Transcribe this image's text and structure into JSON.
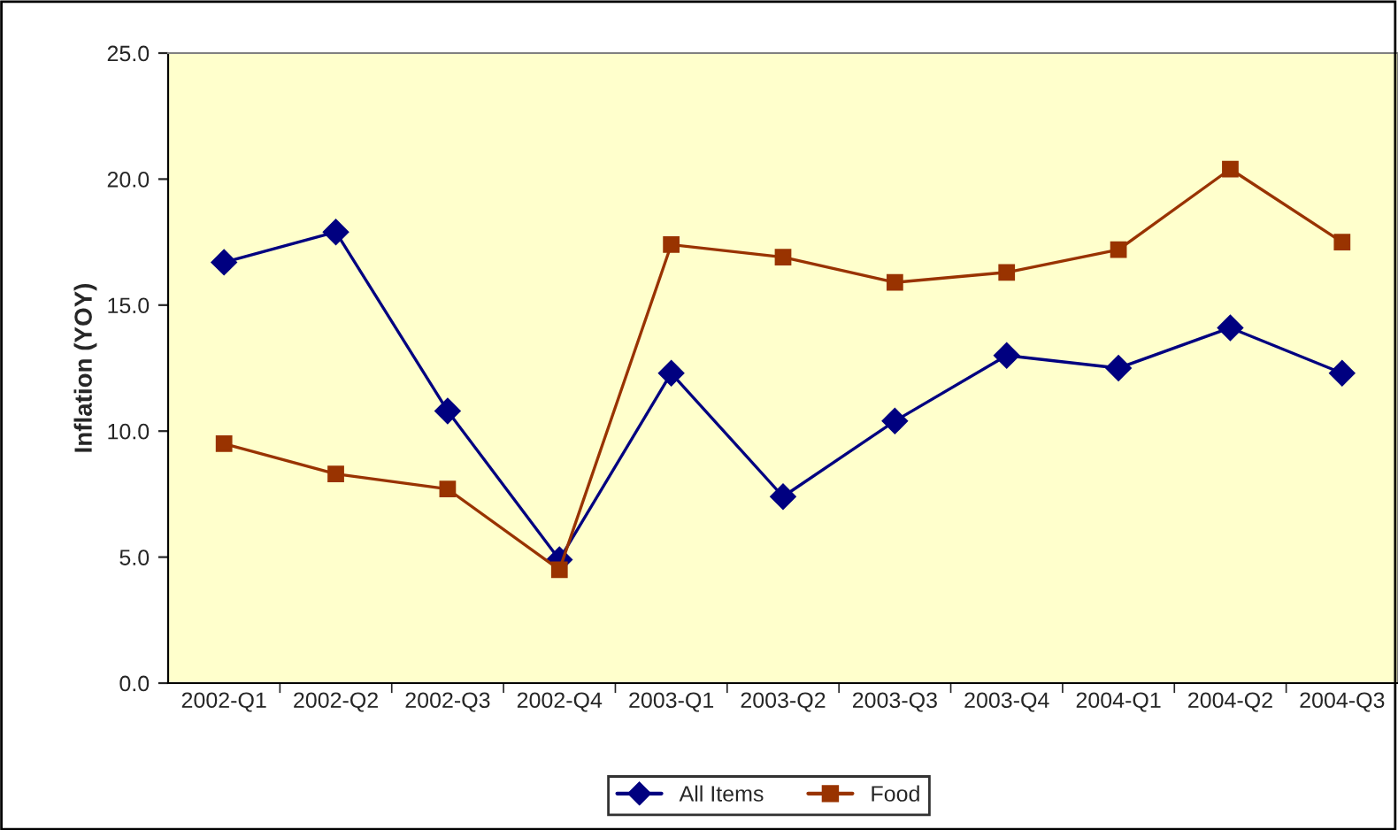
{
  "chart_data": {
    "type": "line",
    "ylabel": "Inflation (YOY)",
    "categories": [
      "2002-Q1",
      "2002-Q2",
      "2002-Q3",
      "2002-Q4",
      "2003-Q1",
      "2003-Q2",
      "2003-Q3",
      "2003-Q4",
      "2004-Q1",
      "2004-Q2",
      "2004-Q3"
    ],
    "series": [
      {
        "name": "All Items",
        "color": "#000080",
        "marker": "diamond",
        "values": [
          16.7,
          17.9,
          10.8,
          4.9,
          12.3,
          7.4,
          10.4,
          13.0,
          12.5,
          14.1,
          12.3
        ]
      },
      {
        "name": "Food",
        "color": "#993300",
        "marker": "square",
        "values": [
          9.5,
          8.3,
          7.7,
          4.5,
          17.4,
          16.9,
          15.9,
          16.3,
          17.2,
          20.4,
          17.5
        ]
      }
    ],
    "ylim": [
      0,
      25
    ],
    "yticks": [
      {
        "value": 0,
        "label": "0.0"
      },
      {
        "value": 5,
        "label": "5.0"
      },
      {
        "value": 10,
        "label": "10.0"
      },
      {
        "value": 15,
        "label": "15.0"
      },
      {
        "value": 20,
        "label": "20.0"
      },
      {
        "value": 25,
        "label": "25.0"
      }
    ],
    "grid": false,
    "legend": "bottom",
    "line_style": "solid"
  }
}
